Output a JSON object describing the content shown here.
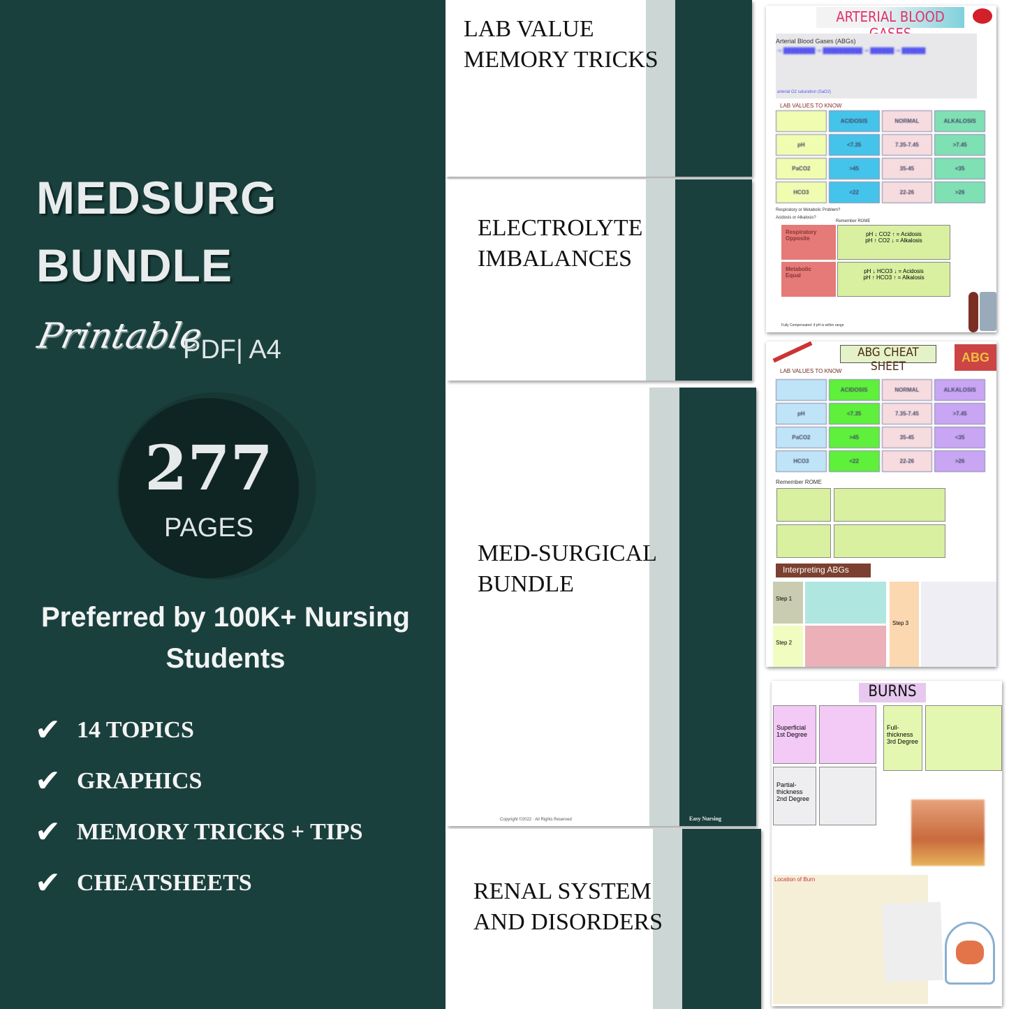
{
  "left_panel": {
    "title_line1": "MEDSURG",
    "title_line2": "BUNDLE",
    "script_label": "Printable",
    "format": "PDF| A4",
    "page_count": "277",
    "page_label": "PAGES",
    "tagline": "Preferred by 100K+ Nursing Students",
    "features": [
      "14 TOPICS",
      "GRAPHICS",
      "MEMORY TRICKS + TIPS",
      "CHEATSHEETS"
    ],
    "check_icon": "checkmark-icon",
    "background_color": "#1a403e"
  },
  "covers": [
    {
      "title": "LAB VALUE\nMEMORY TRICKS"
    },
    {
      "title": "ELECTROLYTE\nIMBALANCES"
    },
    {
      "title": "MED-SURGICAL\nBUNDLE",
      "copyright": "Copyright ©2022 · All Rights Reserved",
      "brand": "Easy Nursing"
    },
    {
      "title": "RENAL SYSTEM\nAND DISORDERS"
    }
  ],
  "abg_page": {
    "title": "ARTERIAL BLOOD GASES",
    "subtitle": "Arterial Blood Gases (ABGs)",
    "bullet_last": "arterial O2 saturation (SaO2)",
    "lab_heading": "LAB VALUES TO KNOW",
    "table": [
      [
        "",
        "ACIDOSIS",
        "NORMAL",
        "ALKALOSIS"
      ],
      [
        "pH",
        "<7.35",
        "7.35-7.45",
        ">7.45"
      ],
      [
        "PaCO2",
        ">45",
        "35-45",
        "<35"
      ],
      [
        "HCO3",
        "<22",
        "22-26",
        ">26"
      ]
    ],
    "question1": "Respiratory or Metabolic Problem?",
    "question2": "Acidosis or Alkalosis?",
    "rome": "Remember ROME",
    "rome_rows": [
      {
        "label": "Respiratory\nOpposite",
        "rule": "pH ↓ CO2 ↑ = Acidosis\npH ↑ CO2 ↓ = Alkalosis"
      },
      {
        "label": "Metabolic\nEqual",
        "rule": "pH ↓ HCO3 ↓ = Acidosis\npH ↑ HCO3 ↑ = Alkalosis"
      }
    ],
    "comp_last": "Fully Compensated: if pH is within range"
  },
  "cheat_page": {
    "title": "ABG CHEAT SHEET",
    "badge": "ABG",
    "lab_heading": "LAB VALUES TO KNOW",
    "rome": "Remember ROME",
    "interpret": "Interpreting ABGs",
    "steps": [
      "Step 1",
      "Step 2",
      "Step 3"
    ]
  },
  "burns_page": {
    "title": "BURNS",
    "degrees": [
      "Superficial\n1st Degree",
      "Partial-\nthickness\n2nd Degree",
      "Full-\nthickness\n3rd Degree"
    ],
    "location": "Location of Burn"
  }
}
